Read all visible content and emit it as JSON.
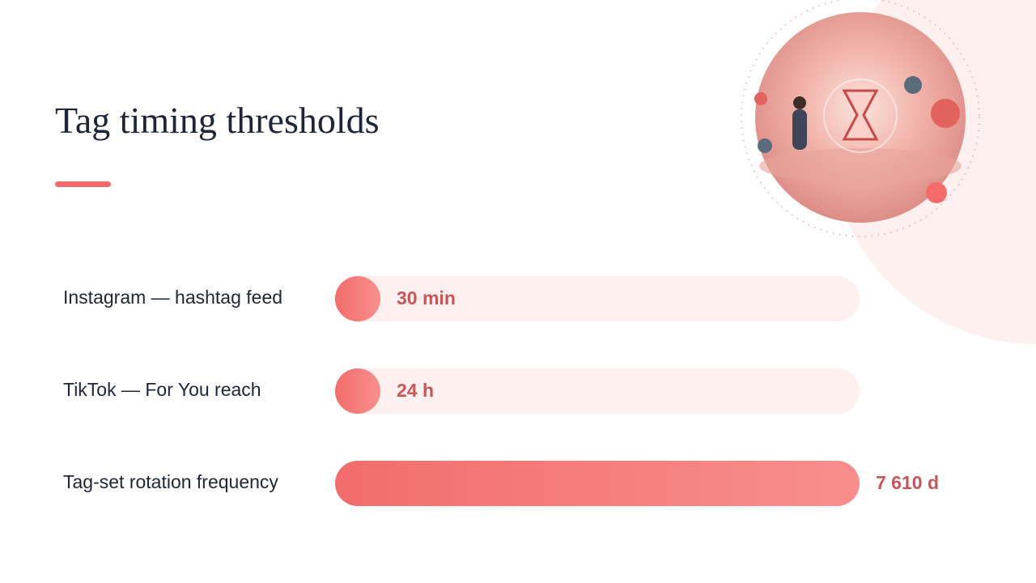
{
  "chart_data": {
    "type": "bar",
    "title": "Tag timing thresholds",
    "categories": [
      "Instagram — hashtag feed",
      "TikTok — For You reach",
      "Tag-set rotation frequency"
    ],
    "values": [
      0.5,
      24,
      182640
    ],
    "value_labels": [
      "30 min",
      "24 h",
      "7 610 d"
    ],
    "color": "#f47272"
  }
}
